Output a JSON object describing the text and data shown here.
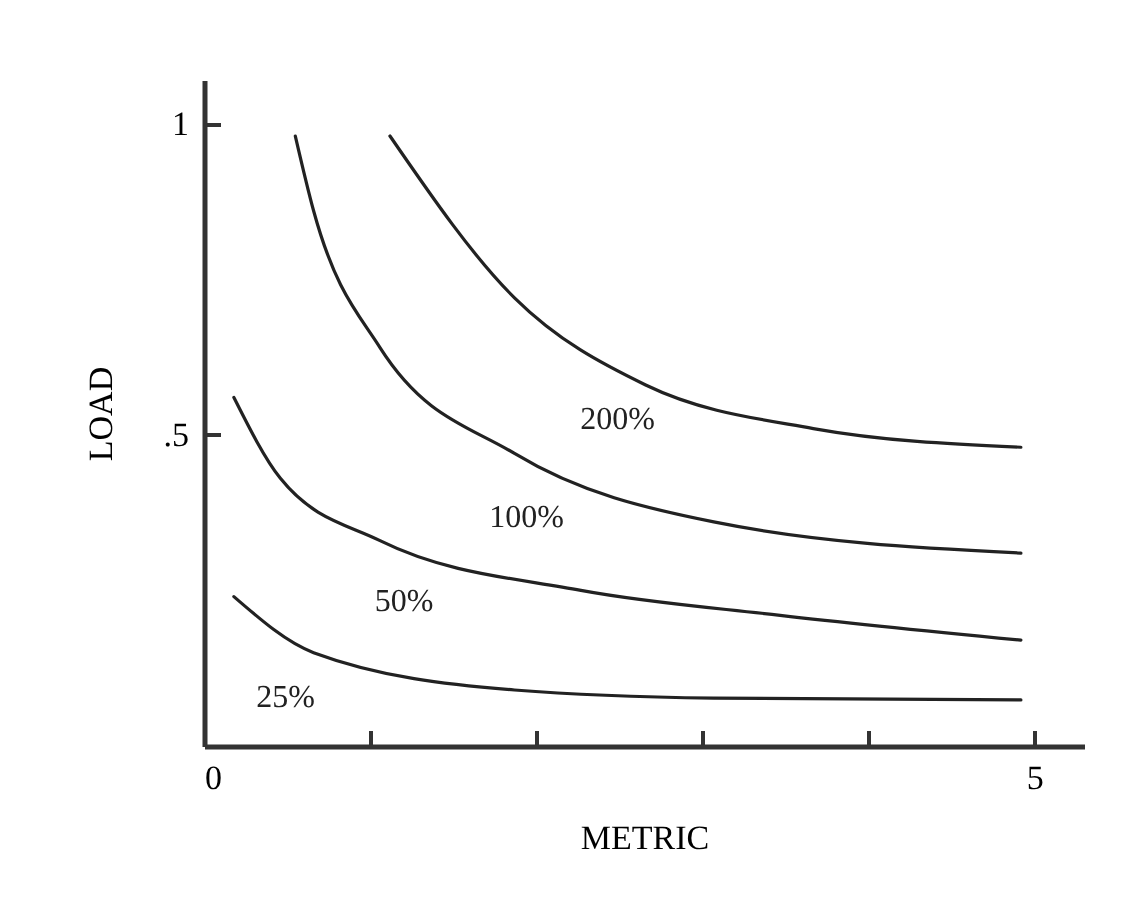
{
  "chart_data": {
    "type": "line",
    "xlabel": "METRIC",
    "ylabel": "LOAD",
    "xlim": [
      0,
      5.3
    ],
    "ylim": [
      0,
      1.07
    ],
    "xticks": [
      0,
      {
        "value": 1,
        "label": null
      },
      {
        "value": 2,
        "label": null
      },
      {
        "value": 3,
        "label": null
      },
      {
        "value": 4,
        "label": null
      },
      5
    ],
    "yticks": [
      {
        "value": 0.5,
        "label": ".5"
      },
      1
    ],
    "series": [
      {
        "name": "200%",
        "color": "#222222",
        "x": [
          1.12,
          1.87,
          2.66,
          3.67,
          4.92
        ],
        "values": [
          0.98,
          0.72,
          0.58,
          0.51,
          0.48
        ]
      },
      {
        "name": "100%",
        "color": "#222222",
        "x": [
          0.55,
          0.66,
          1.06,
          1.87,
          3.07,
          4.92
        ],
        "values": [
          0.98,
          0.86,
          0.64,
          0.47,
          0.36,
          0.31
        ]
      },
      {
        "name": "50%",
        "color": "#222222",
        "x": [
          0.18,
          0.46,
          1.06,
          2.27,
          3.47,
          4.92
        ],
        "values": [
          0.56,
          0.43,
          0.33,
          0.25,
          0.21,
          0.17
        ]
      },
      {
        "name": "25%",
        "color": "#222222",
        "x": [
          0.18,
          0.66,
          1.87,
          3.07,
          4.92
        ],
        "values": [
          0.24,
          0.15,
          0.09,
          0.077,
          0.074
        ]
      }
    ]
  }
}
